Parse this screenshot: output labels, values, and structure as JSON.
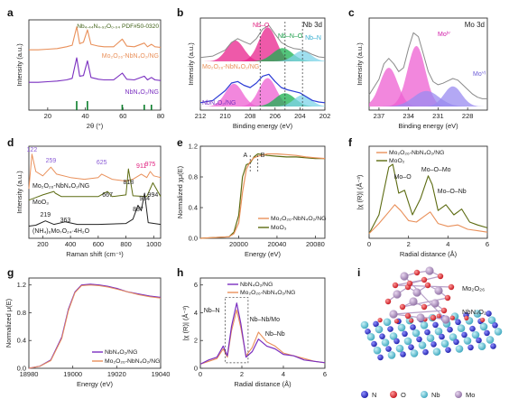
{
  "figure": {
    "panel_labels": [
      "a",
      "b",
      "c",
      "d",
      "e",
      "f",
      "g",
      "h",
      "i"
    ],
    "colors": {
      "orange": "#e9905a",
      "purple": "#7a2fc0",
      "olive": "#5c6b11",
      "pink": "#e8218c",
      "magenta": "#ee5fd1",
      "blue": "#2d3dd6",
      "green": "#19b04f",
      "cyan": "#7fd4ea",
      "lilac": "#9a8bf0",
      "gray": "#8a8a8a",
      "ref_green": "#0a7d2b"
    }
  },
  "chart_data": [
    {
      "panel": "a",
      "type": "line",
      "xlabel": "2θ (°)",
      "ylabel": "Intensity (a.u.)",
      "xlim": [
        10,
        80
      ],
      "xticks": [
        "20",
        "40",
        "60",
        "80"
      ],
      "reference_label": "Nb₄.₄₄N₄.₉₂O₀.₀₄ PDF#50-0320",
      "reference_label_display": "Nb₄.₄₄N₄.₉₂O₀.₀₄ PDF#50-0320",
      "reference_peaks": [
        35.4,
        41.1,
        59.6,
        71.3,
        75.1
      ],
      "series": [
        {
          "name": "Mo₂O₂₆-NbN₄O₂/NG",
          "x": [
            10,
            15,
            20,
            25,
            30,
            33,
            35.4,
            37,
            39,
            41.1,
            43,
            47,
            50,
            55,
            59.6,
            62,
            66,
            71.3,
            73,
            75.1,
            77,
            80
          ],
          "y": [
            0.2,
            0.2,
            0.22,
            0.24,
            0.3,
            0.35,
            0.95,
            0.4,
            0.45,
            0.85,
            0.38,
            0.32,
            0.3,
            0.3,
            0.55,
            0.32,
            0.3,
            0.42,
            0.3,
            0.38,
            0.3,
            0.28
          ]
        },
        {
          "name": "NbN₄O₂/NG",
          "x": [
            10,
            15,
            20,
            25,
            30,
            33,
            35.4,
            37,
            39,
            41.1,
            43,
            47,
            50,
            55,
            59.6,
            62,
            66,
            71.3,
            73,
            75.1,
            77,
            80
          ],
          "y": [
            0.2,
            0.2,
            0.22,
            0.24,
            0.28,
            0.33,
            1.0,
            0.4,
            0.42,
            0.9,
            0.36,
            0.3,
            0.28,
            0.28,
            0.5,
            0.3,
            0.28,
            0.4,
            0.28,
            0.36,
            0.28,
            0.26
          ]
        }
      ]
    },
    {
      "panel": "b",
      "type": "line",
      "title": "Nb 3d",
      "xlabel": "Binding energy (eV)",
      "ylabel": "Intensity (a.u.)",
      "xlim": [
        212,
        202
      ],
      "xticks": [
        "212",
        "210",
        "208",
        "206",
        "204",
        "202"
      ],
      "component_labels": [
        "Nb–O",
        "Nb–N–O",
        "Nb–N"
      ],
      "series": [
        {
          "name": "Mo₂O₂₆-NbN₄O₂/NG",
          "x": [
            212,
            211,
            210,
            209.5,
            209,
            208.5,
            208,
            207.5,
            207,
            206.5,
            206,
            205.5,
            205,
            204.5,
            204,
            203.5,
            203,
            202.5,
            202
          ],
          "y": [
            0.1,
            0.14,
            0.3,
            0.5,
            0.6,
            0.52,
            0.45,
            0.6,
            0.85,
            0.95,
            0.72,
            0.5,
            0.4,
            0.34,
            0.32,
            0.26,
            0.18,
            0.12,
            0.1
          ]
        },
        {
          "name": "NbN₄O₂/NG",
          "x": [
            212,
            211,
            210,
            209.5,
            209,
            208.5,
            208,
            207.5,
            207,
            206.5,
            206,
            205.5,
            205,
            204.5,
            204,
            203.5,
            203,
            202.5,
            202
          ],
          "y": [
            0.1,
            0.16,
            0.42,
            0.62,
            0.66,
            0.56,
            0.5,
            0.62,
            0.8,
            0.85,
            0.66,
            0.5,
            0.44,
            0.4,
            0.36,
            0.26,
            0.16,
            0.12,
            0.1
          ]
        }
      ]
    },
    {
      "panel": "c",
      "type": "line",
      "title": "Mo 3d",
      "xlabel": "Binding energy (eV)",
      "ylabel": "Intensity (a.u.)",
      "xlim": [
        238,
        226
      ],
      "xticks": [
        "237",
        "234",
        "231",
        "228"
      ],
      "annotations": [
        "Moᴵⱽ",
        "Moⱽᴵ"
      ],
      "series": [
        {
          "name": "Mo 3d",
          "x": [
            238,
            237,
            236.5,
            236,
            235.5,
            235,
            234.5,
            234,
            233.5,
            233,
            232.5,
            232,
            231.5,
            231,
            230.5,
            230,
            229.5,
            229,
            228.5,
            228,
            227.5,
            227,
            226.5,
            226
          ],
          "y": [
            0.15,
            0.35,
            0.55,
            0.62,
            0.55,
            0.45,
            0.5,
            0.75,
            0.95,
            0.9,
            0.68,
            0.45,
            0.32,
            0.28,
            0.3,
            0.33,
            0.36,
            0.34,
            0.28,
            0.22,
            0.16,
            0.12,
            0.1,
            0.1
          ]
        }
      ]
    },
    {
      "panel": "d",
      "type": "line",
      "xlabel": "Raman shift (cm⁻¹)",
      "ylabel": "Intensity (a.u.)",
      "xlim": [
        100,
        1050
      ],
      "xticks": [
        "200",
        "400",
        "600",
        "800",
        "1000"
      ],
      "peak_labels": [
        "122",
        "259",
        "625",
        "911",
        "975",
        "667",
        "818",
        "994",
        "219",
        "363",
        "887",
        "934"
      ],
      "series": [
        {
          "name": "Mo₂O₂₆-NbN₄O₂/NG",
          "x": [
            100,
            122,
            150,
            200,
            259,
            300,
            400,
            500,
            600,
            625,
            700,
            800,
            850,
            911,
            950,
            975,
            1000,
            1050
          ],
          "y": [
            0.55,
            0.95,
            0.75,
            0.7,
            0.8,
            0.72,
            0.68,
            0.66,
            0.68,
            0.72,
            0.66,
            0.64,
            0.66,
            0.72,
            0.68,
            0.75,
            0.7,
            0.68
          ]
        },
        {
          "name": "MoO₃",
          "x": [
            100,
            150,
            200,
            280,
            290,
            335,
            380,
            470,
            600,
            667,
            700,
            800,
            818,
            850,
            950,
            994,
            1050
          ],
          "y": [
            0.42,
            0.45,
            0.48,
            0.52,
            0.5,
            0.46,
            0.46,
            0.46,
            0.46,
            0.52,
            0.46,
            0.48,
            0.78,
            0.47,
            0.46,
            0.62,
            0.46
          ]
        },
        {
          "name": "(NH₄)₆Mo₇O₂₄·4H₂O",
          "x": [
            100,
            150,
            219,
            280,
            363,
            450,
            600,
            800,
            850,
            887,
            910,
            934,
            960,
            1050
          ],
          "y": [
            0.12,
            0.13,
            0.18,
            0.14,
            0.17,
            0.14,
            0.14,
            0.15,
            0.2,
            0.36,
            0.3,
            0.5,
            0.16,
            0.14
          ]
        }
      ]
    },
    {
      "panel": "e",
      "type": "line",
      "xlabel": "Energy (eV)",
      "ylabel": "Normalized χμ(E)",
      "xlim": [
        19960,
        20090
      ],
      "ylim": [
        0,
        1.2
      ],
      "xticks": [
        "20000",
        "20040",
        "20080"
      ],
      "yticks": [
        "0.0",
        "0.4",
        "0.8",
        "1.2"
      ],
      "markers": [
        "A",
        "B"
      ],
      "series": [
        {
          "name": "Mo₂O₂₆-NbN₄O₂/NG",
          "x": [
            19960,
            19990,
            19995,
            20000,
            20004,
            20008,
            20012,
            20016,
            20020,
            20030,
            20040,
            20050,
            20060,
            20070,
            20080,
            20090
          ],
          "y": [
            0.0,
            0.02,
            0.06,
            0.2,
            0.6,
            0.9,
            1.0,
            1.05,
            1.07,
            1.1,
            1.1,
            1.09,
            1.08,
            1.06,
            1.05,
            1.04
          ]
        },
        {
          "name": "MoO₃",
          "x": [
            19960,
            19990,
            19995,
            20000,
            20004,
            20008,
            20012,
            20016,
            20020,
            20030,
            20040,
            20050,
            20060,
            20070,
            20080,
            20090
          ],
          "y": [
            0.0,
            0.02,
            0.08,
            0.3,
            0.8,
            0.96,
            0.98,
            1.06,
            1.1,
            1.08,
            1.07,
            1.06,
            1.06,
            1.05,
            1.04,
            1.04
          ]
        }
      ]
    },
    {
      "panel": "f",
      "type": "line",
      "xlabel": "Radial distance (Å)",
      "ylabel": "|χ (R)| (Å⁻³)",
      "xlim": [
        0,
        6
      ],
      "xticks": [
        "0",
        "2",
        "4",
        "6"
      ],
      "annotations": [
        "Mo–O",
        "Mo–O–Mo",
        "Mo–O–Nb"
      ],
      "series": [
        {
          "name": "Mo₂O₂₆-NbN₄O₂/NG",
          "x": [
            0,
            0.5,
            1.0,
            1.3,
            1.6,
            2.0,
            2.4,
            2.8,
            3.1,
            3.5,
            4.0,
            4.5,
            5.0,
            5.5,
            6
          ],
          "y": [
            0.2,
            0.9,
            1.7,
            2.2,
            1.8,
            1.1,
            1.0,
            1.4,
            1.7,
            0.9,
            0.7,
            0.8,
            0.5,
            0.4,
            0.3
          ]
        },
        {
          "name": "MoO₂",
          "x": [
            0,
            0.5,
            1.0,
            1.2,
            1.5,
            1.8,
            2.2,
            2.6,
            3.0,
            3.2,
            3.5,
            3.9,
            4.3,
            4.7,
            5.1,
            5.5,
            6
          ],
          "y": [
            0.2,
            1.5,
            4.8,
            5.0,
            3.0,
            3.2,
            1.5,
            2.6,
            4.2,
            3.6,
            1.8,
            2.2,
            1.5,
            1.9,
            1.0,
            0.8,
            0.6
          ]
        }
      ]
    },
    {
      "panel": "g",
      "type": "line",
      "xlabel": "Energy (eV)",
      "ylabel": "Normalized μ(E)",
      "xlim": [
        18980,
        19040
      ],
      "ylim": [
        0,
        1.3
      ],
      "xticks": [
        "18980",
        "19000",
        "19020",
        "19040"
      ],
      "yticks": [
        "0.0",
        "0.4",
        "0.8",
        "1.2"
      ],
      "series": [
        {
          "name": "NbN₄O₂/NG",
          "x": [
            18980,
            18985,
            18990,
            18995,
            18998,
            19001,
            19004,
            19008,
            19012,
            19016,
            19020,
            19025,
            19030,
            19035,
            19040
          ],
          "y": [
            0.0,
            0.03,
            0.12,
            0.45,
            0.85,
            1.1,
            1.2,
            1.21,
            1.2,
            1.18,
            1.15,
            1.1,
            1.07,
            1.04,
            1.02
          ]
        },
        {
          "name": "Mo₂O₂₆-NbN₄O₂/NG",
          "x": [
            18980,
            18985,
            18990,
            18995,
            18998,
            19001,
            19004,
            19008,
            19012,
            19016,
            19020,
            19025,
            19030,
            19035,
            19040
          ],
          "y": [
            0.0,
            0.03,
            0.11,
            0.43,
            0.83,
            1.09,
            1.19,
            1.2,
            1.19,
            1.17,
            1.14,
            1.1,
            1.06,
            1.03,
            1.01
          ]
        }
      ]
    },
    {
      "panel": "h",
      "type": "line",
      "xlabel": "Radial distance (Å)",
      "ylabel": "|χ (R)| (Å⁻³)",
      "xlim": [
        0,
        6
      ],
      "ylim": [
        0,
        6.5
      ],
      "xticks": [
        "0",
        "2",
        "4",
        "6"
      ],
      "yticks": [
        "0",
        "2",
        "4",
        "6"
      ],
      "annotations": [
        "Nb–N",
        "Nb–Nb/Mo",
        "Nb–Nb"
      ],
      "series": [
        {
          "name": "NbN₄O₂/NG",
          "x": [
            0,
            0.4,
            0.8,
            1.1,
            1.3,
            1.5,
            1.75,
            1.95,
            2.2,
            2.5,
            2.8,
            3.2,
            3.6,
            4.0,
            4.5,
            5.0,
            5.5,
            6
          ],
          "y": [
            0.3,
            0.6,
            0.8,
            1.6,
            0.9,
            3.0,
            4.7,
            3.2,
            0.8,
            1.2,
            2.1,
            1.6,
            1.4,
            1.0,
            0.9,
            0.6,
            0.5,
            0.4
          ]
        },
        {
          "name": "Mo₂O₂₆-NbN₄O₂/NG",
          "x": [
            0,
            0.4,
            0.8,
            1.1,
            1.3,
            1.5,
            1.75,
            1.95,
            2.2,
            2.5,
            2.8,
            3.2,
            3.6,
            4.0,
            4.5,
            5.0,
            5.5,
            6
          ],
          "y": [
            0.3,
            0.5,
            0.7,
            1.4,
            0.8,
            2.7,
            4.2,
            2.9,
            0.9,
            1.5,
            2.6,
            1.9,
            1.6,
            1.1,
            0.9,
            0.7,
            0.5,
            0.4
          ]
        }
      ]
    },
    {
      "panel": "i",
      "type": "other",
      "labels": [
        "Mo₂O₂₆",
        "NbN₄O₂"
      ],
      "legend": [
        "N",
        "O",
        "Nb",
        "Mo"
      ]
    }
  ]
}
